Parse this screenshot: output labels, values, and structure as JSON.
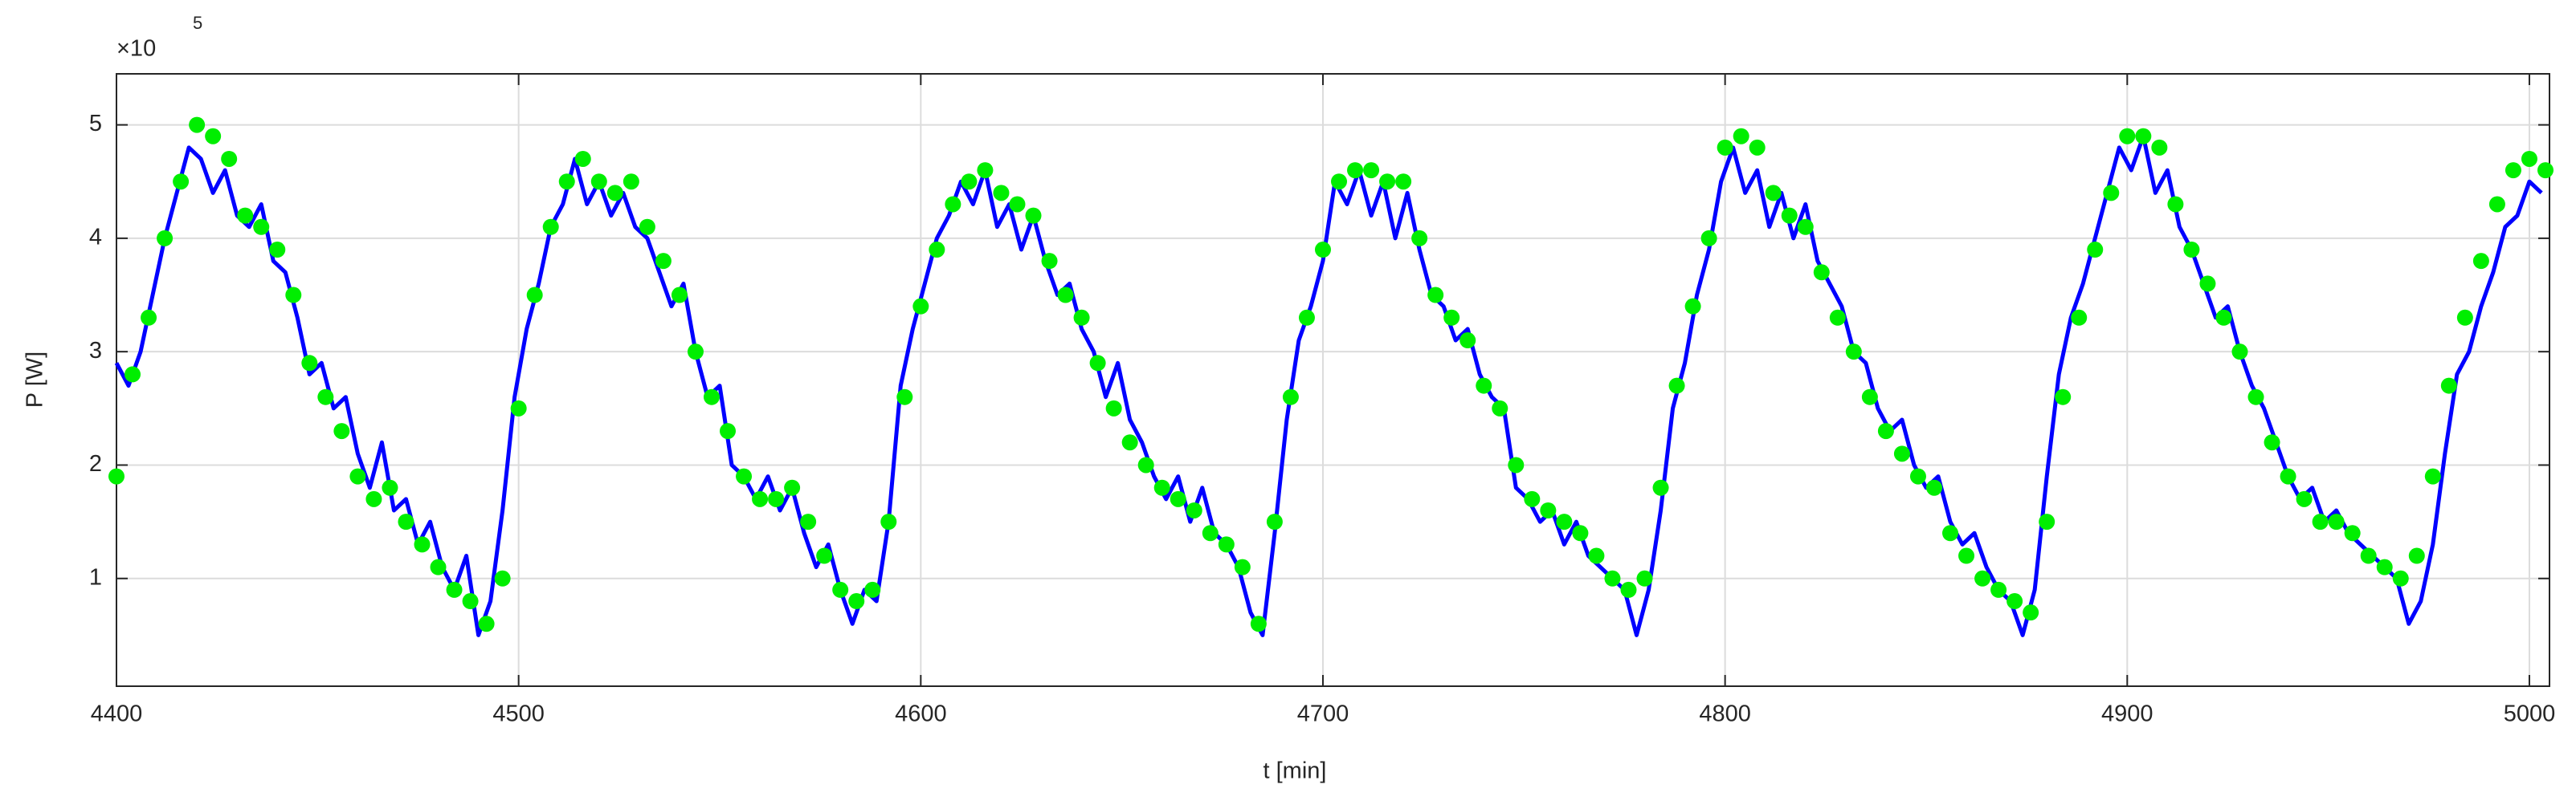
{
  "chart_data": {
    "type": "line",
    "xlabel": "t [min]",
    "ylabel": "P [W]",
    "y_multiplier": "×10",
    "y_exponent": "5",
    "xlim": [
      4400,
      5005
    ],
    "ylim": [
      0.05,
      5.45
    ],
    "xticks": [
      4400,
      4500,
      4600,
      4700,
      4800,
      4900,
      5000
    ],
    "yticks": [
      1,
      2,
      3,
      4,
      5
    ],
    "grid": true,
    "series": [
      {
        "mode": "line",
        "color": "#0000ff",
        "x": [
          4400,
          4403,
          4406,
          4409,
          4412,
          4415,
          4418,
          4421,
          4424,
          4427,
          4430,
          4433,
          4436,
          4439,
          4442,
          4445,
          4448,
          4451,
          4454,
          4457,
          4460,
          4463,
          4466,
          4469,
          4472,
          4475,
          4478,
          4481,
          4484,
          4487,
          4490,
          4493,
          4496,
          4499,
          4502,
          4505,
          4508,
          4511,
          4514,
          4517,
          4520,
          4523,
          4526,
          4529,
          4532,
          4535,
          4538,
          4541,
          4544,
          4547,
          4550,
          4553,
          4556,
          4559,
          4562,
          4565,
          4568,
          4571,
          4574,
          4577,
          4580,
          4583,
          4586,
          4589,
          4592,
          4595,
          4598,
          4601,
          4604,
          4607,
          4610,
          4613,
          4616,
          4619,
          4622,
          4625,
          4628,
          4631,
          4634,
          4637,
          4640,
          4643,
          4646,
          4649,
          4652,
          4655,
          4658,
          4661,
          4664,
          4667,
          4670,
          4673,
          4676,
          4679,
          4682,
          4685,
          4688,
          4691,
          4694,
          4697,
          4700,
          4703,
          4706,
          4709,
          4712,
          4715,
          4718,
          4721,
          4724,
          4727,
          4730,
          4733,
          4736,
          4739,
          4742,
          4745,
          4748,
          4751,
          4754,
          4757,
          4760,
          4763,
          4766,
          4769,
          4772,
          4775,
          4778,
          4781,
          4784,
          4787,
          4790,
          4793,
          4796,
          4799,
          4802,
          4805,
          4808,
          4811,
          4814,
          4817,
          4820,
          4823,
          4826,
          4829,
          4832,
          4835,
          4838,
          4841,
          4844,
          4847,
          4850,
          4853,
          4856,
          4859,
          4862,
          4865,
          4868,
          4871,
          4874,
          4877,
          4880,
          4883,
          4886,
          4889,
          4892,
          4895,
          4898,
          4901,
          4904,
          4907,
          4910,
          4913,
          4916,
          4919,
          4922,
          4925,
          4928,
          4931,
          4934,
          4937,
          4940,
          4943,
          4946,
          4949,
          4952,
          4955,
          4958,
          4961,
          4964,
          4967,
          4970,
          4973,
          4976,
          4979,
          4982,
          4985,
          4988,
          4991,
          4994,
          4997,
          5000,
          5003
        ],
        "values": [
          2.9,
          2.7,
          3.0,
          3.5,
          4.0,
          4.4,
          4.8,
          4.7,
          4.4,
          4.6,
          4.2,
          4.1,
          4.3,
          3.8,
          3.7,
          3.3,
          2.8,
          2.9,
          2.5,
          2.6,
          2.1,
          1.8,
          2.2,
          1.6,
          1.7,
          1.3,
          1.5,
          1.1,
          0.9,
          1.2,
          0.5,
          0.8,
          1.6,
          2.6,
          3.2,
          3.6,
          4.1,
          4.3,
          4.7,
          4.3,
          4.5,
          4.2,
          4.4,
          4.1,
          4.0,
          3.7,
          3.4,
          3.6,
          3.0,
          2.6,
          2.7,
          2.0,
          1.9,
          1.7,
          1.9,
          1.6,
          1.8,
          1.4,
          1.1,
          1.3,
          0.9,
          0.6,
          0.9,
          0.8,
          1.5,
          2.7,
          3.2,
          3.6,
          4.0,
          4.2,
          4.5,
          4.3,
          4.6,
          4.1,
          4.3,
          3.9,
          4.2,
          3.8,
          3.5,
          3.6,
          3.2,
          3.0,
          2.6,
          2.9,
          2.4,
          2.2,
          1.9,
          1.7,
          1.9,
          1.5,
          1.8,
          1.4,
          1.3,
          1.1,
          0.7,
          0.5,
          1.4,
          2.4,
          3.1,
          3.4,
          3.8,
          4.5,
          4.3,
          4.6,
          4.2,
          4.5,
          4.0,
          4.4,
          3.9,
          3.5,
          3.4,
          3.1,
          3.2,
          2.8,
          2.6,
          2.5,
          1.8,
          1.7,
          1.5,
          1.6,
          1.3,
          1.5,
          1.2,
          1.1,
          1.0,
          0.9,
          0.5,
          0.9,
          1.6,
          2.5,
          2.9,
          3.5,
          3.9,
          4.5,
          4.8,
          4.4,
          4.6,
          4.1,
          4.4,
          4.0,
          4.3,
          3.8,
          3.6,
          3.4,
          3.0,
          2.9,
          2.5,
          2.3,
          2.4,
          2.0,
          1.8,
          1.9,
          1.5,
          1.3,
          1.4,
          1.1,
          0.9,
          0.8,
          0.5,
          0.9,
          1.9,
          2.8,
          3.3,
          3.6,
          4.0,
          4.4,
          4.8,
          4.6,
          4.9,
          4.4,
          4.6,
          4.1,
          3.9,
          3.6,
          3.3,
          3.4,
          3.0,
          2.7,
          2.5,
          2.2,
          1.9,
          1.7,
          1.8,
          1.5,
          1.6,
          1.4,
          1.3,
          1.2,
          1.1,
          1.0,
          0.6,
          0.8,
          1.3,
          2.1,
          2.8,
          3.0,
          3.4,
          3.7,
          4.1,
          4.2,
          4.5,
          4.4
        ]
      },
      {
        "mode": "markers",
        "color": "#00ee00",
        "x": [
          4400,
          4404,
          4408,
          4412,
          4416,
          4420,
          4424,
          4428,
          4432,
          4436,
          4440,
          4444,
          4448,
          4452,
          4456,
          4460,
          4464,
          4468,
          4472,
          4476,
          4480,
          4484,
          4488,
          4492,
          4496,
          4500,
          4504,
          4508,
          4512,
          4516,
          4520,
          4524,
          4528,
          4532,
          4536,
          4540,
          4544,
          4548,
          4552,
          4556,
          4560,
          4564,
          4568,
          4572,
          4576,
          4580,
          4584,
          4588,
          4592,
          4596,
          4600,
          4604,
          4608,
          4612,
          4616,
          4620,
          4624,
          4628,
          4632,
          4636,
          4640,
          4644,
          4648,
          4652,
          4656,
          4660,
          4664,
          4668,
          4672,
          4676,
          4680,
          4684,
          4688,
          4692,
          4696,
          4700,
          4704,
          4708,
          4712,
          4716,
          4720,
          4724,
          4728,
          4732,
          4736,
          4740,
          4744,
          4748,
          4752,
          4756,
          4760,
          4764,
          4768,
          4772,
          4776,
          4780,
          4784,
          4788,
          4792,
          4796,
          4800,
          4804,
          4808,
          4812,
          4816,
          4820,
          4824,
          4828,
          4832,
          4836,
          4840,
          4844,
          4848,
          4852,
          4856,
          4860,
          4864,
          4868,
          4872,
          4876,
          4880,
          4884,
          4888,
          4892,
          4896,
          4900,
          4904,
          4908,
          4912,
          4916,
          4920,
          4924,
          4928,
          4932,
          4936,
          4940,
          4944,
          4948,
          4952,
          4956,
          4960,
          4964,
          4968,
          4972,
          4976,
          4980,
          4984,
          4988,
          4992,
          4996,
          5000,
          5004
        ],
        "values": [
          1.9,
          2.8,
          3.3,
          4.0,
          4.5,
          5.0,
          4.9,
          4.7,
          4.2,
          4.1,
          3.9,
          3.5,
          2.9,
          2.6,
          2.3,
          1.9,
          1.7,
          1.8,
          1.5,
          1.3,
          1.1,
          0.9,
          0.8,
          0.6,
          1.0,
          2.5,
          3.5,
          4.1,
          4.5,
          4.7,
          4.5,
          4.4,
          4.5,
          4.1,
          3.8,
          3.5,
          3.0,
          2.6,
          2.3,
          1.9,
          1.7,
          1.7,
          1.8,
          1.5,
          1.2,
          0.9,
          0.8,
          0.9,
          1.5,
          2.6,
          3.4,
          3.9,
          4.3,
          4.5,
          4.6,
          4.4,
          4.3,
          4.2,
          3.8,
          3.5,
          3.3,
          2.9,
          2.5,
          2.2,
          2.0,
          1.8,
          1.7,
          1.6,
          1.4,
          1.3,
          1.1,
          0.6,
          1.5,
          2.6,
          3.3,
          3.9,
          4.5,
          4.6,
          4.6,
          4.5,
          4.5,
          4.0,
          3.5,
          3.3,
          3.1,
          2.7,
          2.5,
          2.0,
          1.7,
          1.6,
          1.5,
          1.4,
          1.2,
          1.0,
          0.9,
          1.0,
          1.8,
          2.7,
          3.4,
          4.0,
          4.8,
          4.9,
          4.8,
          4.4,
          4.2,
          4.1,
          3.7,
          3.3,
          3.0,
          2.6,
          2.3,
          2.1,
          1.9,
          1.8,
          1.4,
          1.2,
          1.0,
          0.9,
          0.8,
          0.7,
          1.5,
          2.6,
          3.3,
          3.9,
          4.4,
          4.9,
          4.9,
          4.8,
          4.3,
          3.9,
          3.6,
          3.3,
          3.0,
          2.6,
          2.2,
          1.9,
          1.7,
          1.5,
          1.5,
          1.4,
          1.2,
          1.1,
          1.0,
          1.2,
          1.9,
          2.7,
          3.3,
          3.8,
          4.3,
          4.6,
          4.7,
          4.6
        ]
      }
    ]
  }
}
